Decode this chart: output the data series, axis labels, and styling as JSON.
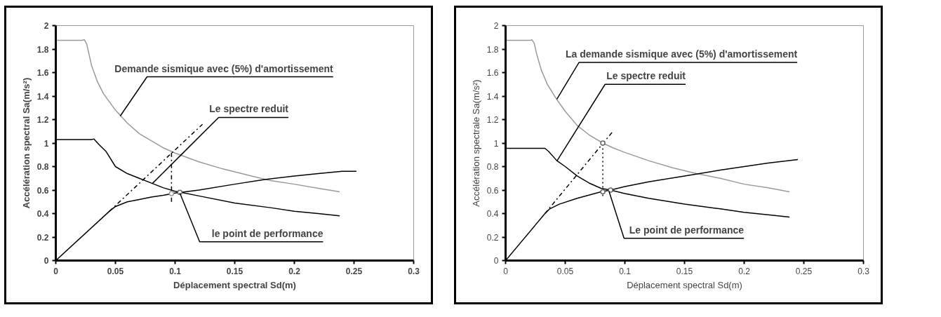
{
  "chart_data": [
    {
      "type": "line",
      "xlabel": "Déplacement spectral Sd(m)",
      "ylabel": "Accélération spectral Sa(m/s²)",
      "xlim": [
        0,
        0.3
      ],
      "xticks": [
        0,
        0.05,
        0.1,
        0.15,
        0.2,
        0.25,
        0.3
      ],
      "ylim": [
        0,
        2
      ],
      "yticks": [
        0,
        0.2,
        0.4,
        0.6,
        0.8,
        1,
        1.2,
        1.4,
        1.6,
        1.8,
        2
      ],
      "grid": false,
      "series": [
        {
          "color": "#999999",
          "x": [
            0,
            0.022,
            0.024,
            0.026,
            0.03,
            0.035,
            0.04,
            0.05,
            0.06,
            0.07,
            0.08,
            0.09,
            0.1,
            0.12,
            0.14,
            0.16,
            0.18,
            0.2,
            0.22,
            0.238
          ],
          "values": [
            1.875,
            1.875,
            1.88,
            1.84,
            1.66,
            1.52,
            1.42,
            1.28,
            1.17,
            1.08,
            1.02,
            0.96,
            0.915,
            0.84,
            0.78,
            0.73,
            0.68,
            0.65,
            0.615,
            0.585
          ]
        },
        {
          "color": "#000000",
          "x": [
            0,
            0.03,
            0.032,
            0.036,
            0.042,
            0.05,
            0.06,
            0.07,
            0.081,
            0.09,
            0.1,
            0.105,
            0.12,
            0.15,
            0.18,
            0.2,
            0.22,
            0.238
          ],
          "values": [
            1.03,
            1.03,
            1.035,
            0.99,
            0.93,
            0.8,
            0.74,
            0.7,
            0.656,
            0.62,
            0.59,
            0.58,
            0.55,
            0.49,
            0.45,
            0.42,
            0.4,
            0.38
          ]
        },
        {
          "color": "#000000",
          "x": [
            0,
            0.045,
            0.05,
            0.06,
            0.07,
            0.08,
            0.09,
            0.1,
            0.105,
            0.12,
            0.15,
            0.175,
            0.2,
            0.22,
            0.24,
            0.252
          ],
          "values": [
            0,
            0.42,
            0.46,
            0.5,
            0.52,
            0.54,
            0.555,
            0.575,
            0.58,
            0.6,
            0.65,
            0.69,
            0.72,
            0.74,
            0.76,
            0.76
          ]
        },
        {
          "color": "#000000",
          "line_style": "dashed",
          "x": [
            0.045,
            0.123
          ],
          "values": [
            0.42,
            1.16
          ]
        },
        {
          "color": "#000000",
          "line_style": "dashed",
          "x": [
            0.097,
            0.097
          ],
          "values": [
            0.5,
            0.92
          ]
        },
        {
          "type": "scatter",
          "marker": "circle",
          "color": "#999999",
          "x": [
            0.097
          ],
          "values": [
            0.57
          ]
        },
        {
          "type": "scatter",
          "marker": "circle",
          "color": "#666666",
          "x": [
            0.104
          ],
          "values": [
            0.58
          ]
        }
      ],
      "annotations": [
        {
          "text": "Demande sismique avec (5%) d'amortissement",
          "x": 0.054,
          "y": 1.23
        },
        {
          "text": "Le spectre reduit",
          "x": 0.081,
          "y": 0.656
        },
        {
          "text": "le point de performance",
          "x": 0.104,
          "y": 0.575
        }
      ]
    },
    {
      "type": "line",
      "xlabel": "Déplacement spectral Sd(m)",
      "ylabel": "Accélération spectrale Sa(m/s²)",
      "xlim": [
        0,
        0.3
      ],
      "xticks": [
        0,
        0.05,
        0.1,
        0.15,
        0.2,
        0.25,
        0.3
      ],
      "ylim": [
        0,
        2
      ],
      "yticks": [
        0,
        0.2,
        0.4,
        0.6,
        0.8,
        1,
        1.2,
        1.4,
        1.6,
        1.8,
        2
      ],
      "grid": false,
      "series": [
        {
          "color": "#999999",
          "x": [
            0,
            0.021,
            0.022,
            0.024,
            0.026,
            0.03,
            0.035,
            0.043,
            0.05,
            0.06,
            0.07,
            0.0815,
            0.09,
            0.1,
            0.12,
            0.14,
            0.16,
            0.18,
            0.2,
            0.22,
            0.238
          ],
          "values": [
            1.875,
            1.875,
            1.88,
            1.85,
            1.76,
            1.62,
            1.5,
            1.37,
            1.27,
            1.15,
            1.07,
            1.0,
            0.96,
            0.92,
            0.85,
            0.79,
            0.74,
            0.7,
            0.65,
            0.62,
            0.585
          ]
        },
        {
          "color": "#000000",
          "x": [
            0,
            0.033,
            0.036,
            0.043,
            0.05,
            0.06,
            0.07,
            0.08,
            0.088,
            0.1,
            0.12,
            0.15,
            0.18,
            0.2,
            0.22,
            0.238
          ],
          "values": [
            0.955,
            0.955,
            0.93,
            0.85,
            0.8,
            0.72,
            0.66,
            0.615,
            0.6,
            0.57,
            0.53,
            0.48,
            0.44,
            0.41,
            0.39,
            0.37
          ]
        },
        {
          "color": "#000000",
          "x": [
            0,
            0.033,
            0.037,
            0.045,
            0.06,
            0.08,
            0.088,
            0.1,
            0.12,
            0.15,
            0.18,
            0.2,
            0.22,
            0.245
          ],
          "values": [
            0,
            0.4,
            0.44,
            0.48,
            0.53,
            0.585,
            0.6,
            0.63,
            0.67,
            0.72,
            0.77,
            0.8,
            0.83,
            0.86
          ]
        },
        {
          "color": "#000000",
          "line_style": "dashed",
          "x": [
            0.033,
            0.09
          ],
          "values": [
            0.4,
            1.1
          ]
        },
        {
          "color": "#000000",
          "line_style": "dotted",
          "x": [
            0.0815,
            0.0815
          ],
          "values": [
            0.55,
            1.0
          ]
        },
        {
          "type": "scatter",
          "marker": "circle",
          "color": "#666666",
          "x": [
            0.0815,
            0.0815,
            0.088
          ],
          "values": [
            1.0,
            0.585,
            0.6
          ]
        }
      ],
      "annotations": [
        {
          "text": "La demande sismique avec (5%) d'amortissement",
          "x": 0.043,
          "y": 1.374
        },
        {
          "text": "Le spectre reduit",
          "x": 0.043,
          "y": 0.847
        },
        {
          "text": "Le point de performance",
          "x": 0.0867,
          "y": 0.589
        }
      ]
    }
  ]
}
